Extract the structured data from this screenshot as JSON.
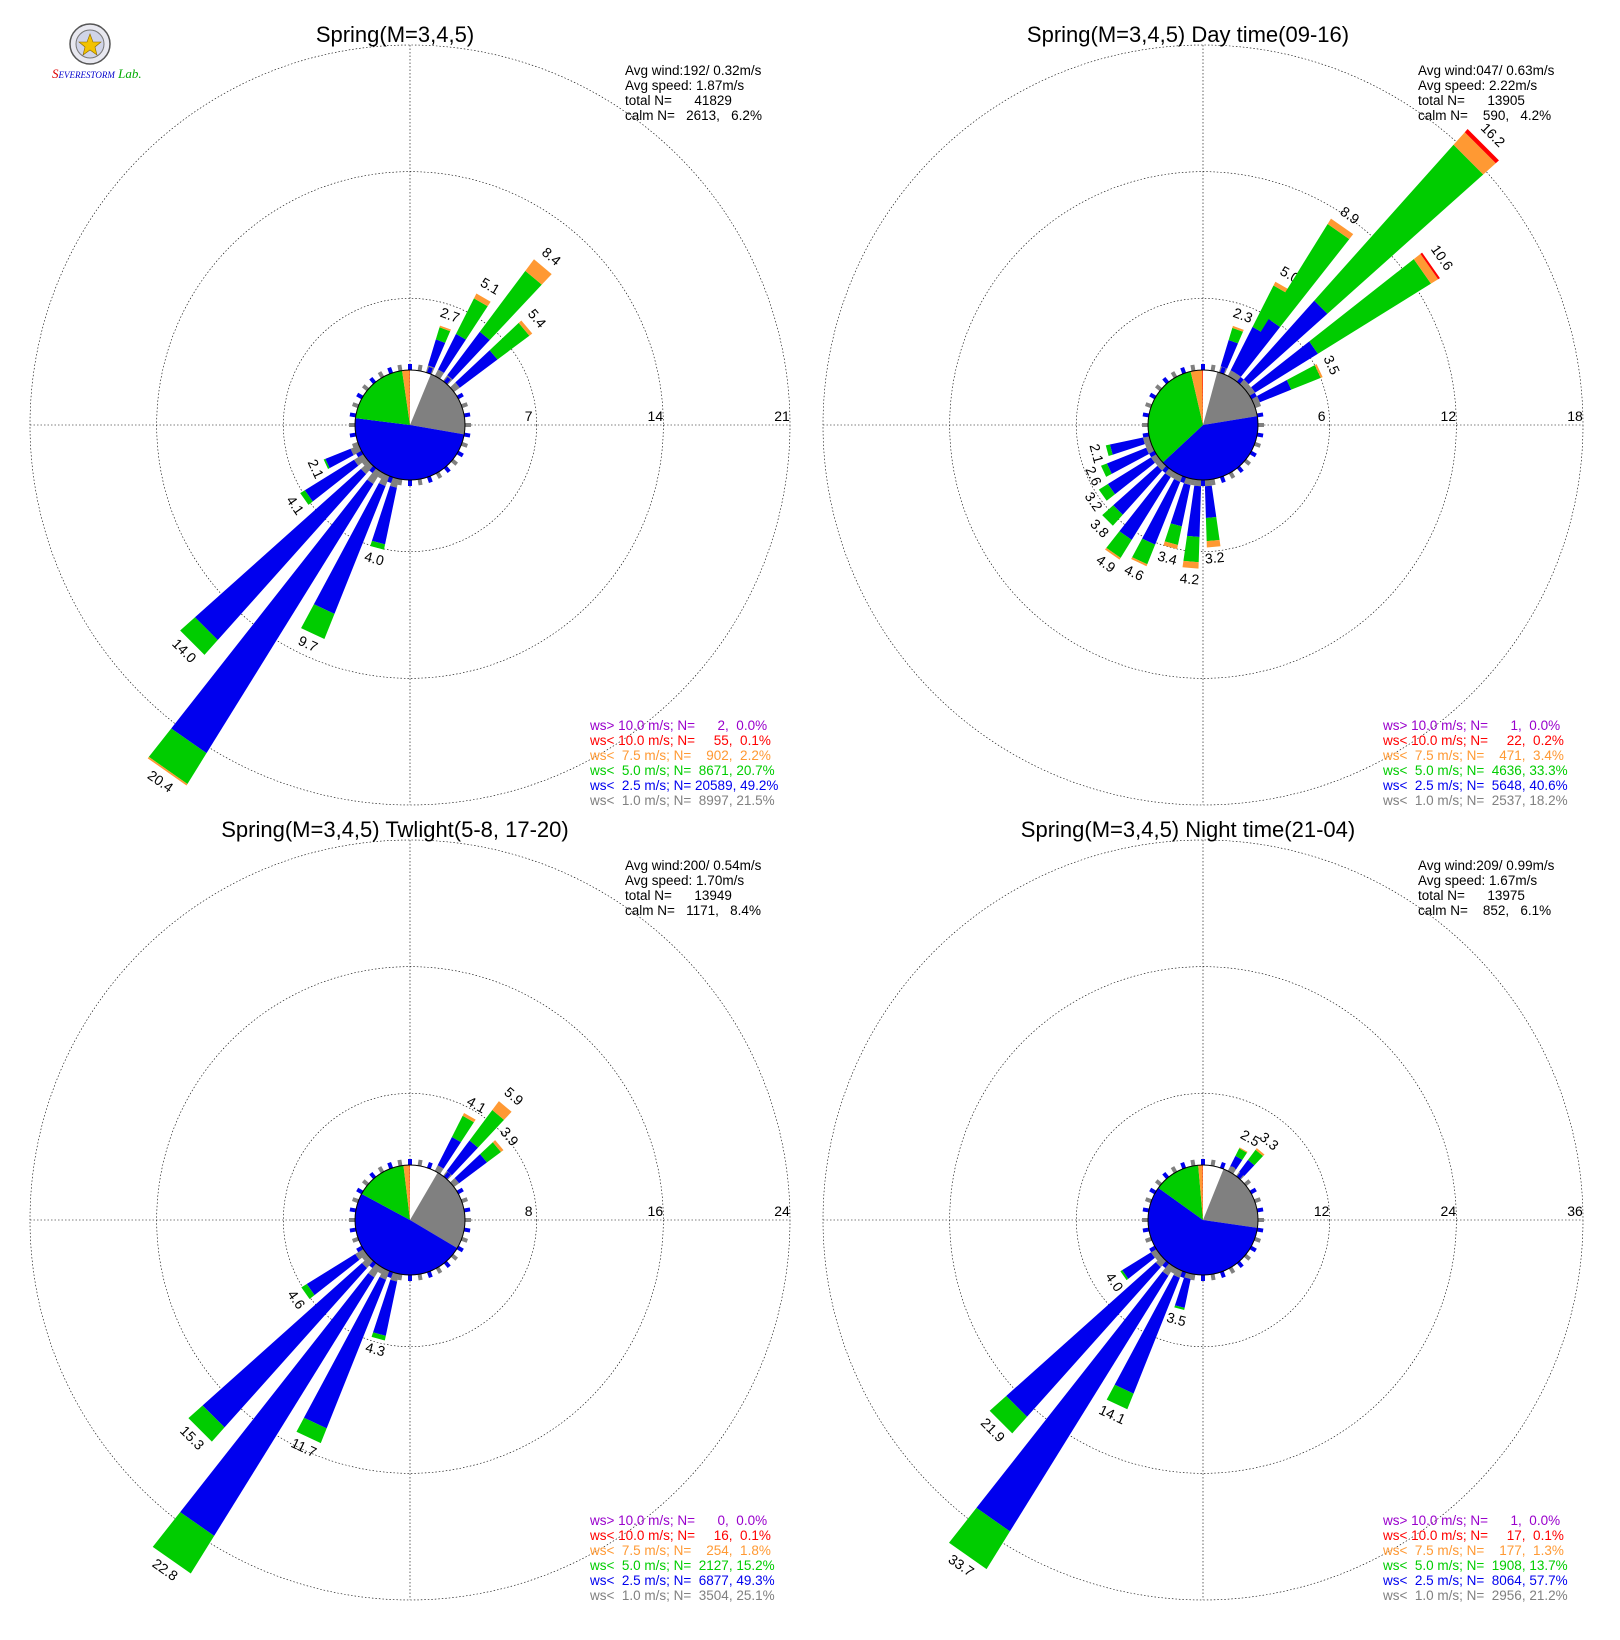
{
  "logo_text": "Severe Storm Lab.",
  "colors": {
    "gt10": "#9900cc",
    "lt10": "#ff0000",
    "lt75": "#ff9933",
    "lt5": "#00cc00",
    "lt25": "#0000ee",
    "lt1": "#808080",
    "calm": "#ffffff",
    "grid": "#000000"
  },
  "chart_data": [
    {
      "type": "windrose",
      "title": "Spring(M=3,4,5)",
      "stats": [
        "Avg wind:192/ 0.32m/s",
        "Avg speed: 1.87m/s",
        "total N=      41829",
        "calm N=   2613,   6.2%"
      ],
      "ring_labels": [
        "7",
        "14",
        "21"
      ],
      "rmax": 21,
      "pie": [
        6.2,
        21.5,
        49.2,
        20.7,
        2.2,
        0.1
      ],
      "petals": [
        {
          "dir_deg": 30,
          "total": 5.1,
          "label": "5.1",
          "segs": [
            0.4,
            2.2,
            2.2,
            0.3,
            0
          ]
        },
        {
          "dir_deg": 40,
          "total": 8.4,
          "label": "8.4",
          "segs": [
            0.4,
            3.0,
            4.2,
            0.8,
            0
          ]
        },
        {
          "dir_deg": 50,
          "total": 5.4,
          "label": "5.4",
          "segs": [
            0.4,
            2.6,
            2.2,
            0.2,
            0
          ]
        },
        {
          "dir_deg": 20,
          "total": 2.7,
          "label": "2.7",
          "segs": [
            0.4,
            1.5,
            0.7,
            0.1,
            0
          ]
        },
        {
          "dir_deg": 215,
          "total": 20.4,
          "label": "20.4",
          "segs": [
            0.8,
            17.5,
            2.0,
            0.1,
            0
          ]
        },
        {
          "dir_deg": 225,
          "total": 14.0,
          "label": "14.0",
          "segs": [
            0.6,
            12.3,
            1.1,
            0,
            0
          ]
        },
        {
          "dir_deg": 205,
          "total": 9.7,
          "label": "9.7",
          "segs": [
            0.6,
            7.6,
            1.5,
            0,
            0
          ]
        },
        {
          "dir_deg": 195,
          "total": 4.0,
          "label": "4.0",
          "segs": [
            0.5,
            3.2,
            0.3,
            0,
            0
          ]
        },
        {
          "dir_deg": 235,
          "total": 4.1,
          "label": "4.1",
          "segs": [
            0.6,
            3.2,
            0.3,
            0,
            0
          ]
        },
        {
          "dir_deg": 245,
          "total": 2.1,
          "label": "2.1",
          "segs": [
            0.5,
            1.5,
            0.1,
            0,
            0
          ]
        }
      ],
      "legend": [
        {
          "text": "ws> 10.0 m/s; N=      2,  0.0%",
          "key": "gt10"
        },
        {
          "text": "ws< 10.0 m/s; N=     55,  0.1%",
          "key": "lt10"
        },
        {
          "text": "ws<  7.5 m/s; N=    902,  2.2%",
          "key": "lt75"
        },
        {
          "text": "ws<  5.0 m/s; N=  8671, 20.7%",
          "key": "lt5"
        },
        {
          "text": "ws<  2.5 m/s; N= 20589, 49.2%",
          "key": "lt25"
        },
        {
          "text": "ws<  1.0 m/s; N=  8997, 21.5%",
          "key": "lt1"
        }
      ]
    },
    {
      "type": "windrose",
      "title": "Spring(M=3,4,5) Day time(09-16)",
      "stats": [
        "Avg wind:047/ 0.63m/s",
        "Avg speed: 2.22m/s",
        "total N=      13905",
        "calm N=    590,   4.2%"
      ],
      "ring_labels": [
        "6",
        "12",
        "18"
      ],
      "rmax": 18,
      "pie": [
        4.2,
        18.2,
        40.6,
        33.3,
        3.4,
        0.2
      ],
      "petals": [
        {
          "dir_deg": 20,
          "total": 2.3,
          "label": "2.3",
          "segs": [
            0.3,
            1.3,
            0.6,
            0.1,
            0
          ]
        },
        {
          "dir_deg": 30,
          "total": 5.0,
          "label": "5.0",
          "segs": [
            0.3,
            2.3,
            2.2,
            0.2,
            0
          ]
        },
        {
          "dir_deg": 35,
          "total": 8.9,
          "label": "8.9",
          "segs": [
            0.3,
            3.0,
            5.3,
            0.3,
            0
          ]
        },
        {
          "dir_deg": 45,
          "total": 16.2,
          "label": "16.2",
          "segs": [
            0.3,
            5.0,
            9.9,
            0.8,
            0.2
          ]
        },
        {
          "dir_deg": 55,
          "total": 10.6,
          "label": "10.6",
          "segs": [
            0.3,
            3.5,
            6.3,
            0.4,
            0.1
          ]
        },
        {
          "dir_deg": 65,
          "total": 3.5,
          "label": "3.5",
          "segs": [
            0.3,
            1.6,
            1.5,
            0.1,
            0
          ]
        },
        {
          "dir_deg": 175,
          "total": 3.2,
          "label": "3.2",
          "segs": [
            0.3,
            1.5,
            1.1,
            0.3,
            0
          ]
        },
        {
          "dir_deg": 185,
          "total": 4.2,
          "label": "4.2",
          "segs": [
            0.3,
            2.4,
            1.2,
            0.3,
            0
          ]
        },
        {
          "dir_deg": 195,
          "total": 3.4,
          "label": "3.4",
          "segs": [
            0.3,
            2.0,
            0.9,
            0.2,
            0
          ]
        },
        {
          "dir_deg": 205,
          "total": 4.6,
          "label": "4.6",
          "segs": [
            0.3,
            3.2,
            1.0,
            0.1,
            0
          ]
        },
        {
          "dir_deg": 215,
          "total": 4.9,
          "label": "4.9",
          "segs": [
            0.3,
            3.5,
            1.0,
            0.1,
            0
          ]
        },
        {
          "dir_deg": 225,
          "total": 3.8,
          "label": "3.8",
          "segs": [
            0.3,
            2.8,
            0.7,
            0,
            0
          ]
        },
        {
          "dir_deg": 235,
          "total": 3.2,
          "label": "3.2",
          "segs": [
            0.3,
            2.4,
            0.5,
            0,
            0
          ]
        },
        {
          "dir_deg": 245,
          "total": 2.6,
          "label": "2.6",
          "segs": [
            0.3,
            2.0,
            0.3,
            0,
            0
          ]
        },
        {
          "dir_deg": 255,
          "total": 2.1,
          "label": "2.1",
          "segs": [
            0.3,
            1.6,
            0.2,
            0,
            0
          ]
        }
      ],
      "legend": [
        {
          "text": "ws> 10.0 m/s; N=      1,  0.0%",
          "key": "gt10"
        },
        {
          "text": "ws< 10.0 m/s; N=     22,  0.2%",
          "key": "lt10"
        },
        {
          "text": "ws<  7.5 m/s; N=    471,  3.4%",
          "key": "lt75"
        },
        {
          "text": "ws<  5.0 m/s; N=  4636, 33.3%",
          "key": "lt5"
        },
        {
          "text": "ws<  2.5 m/s; N=  5648, 40.6%",
          "key": "lt25"
        },
        {
          "text": "ws<  1.0 m/s; N=  2537, 18.2%",
          "key": "lt1"
        }
      ]
    },
    {
      "type": "windrose",
      "title": "Spring(M=3,4,5) Twlight(5-8, 17-20)",
      "stats": [
        "Avg wind:200/ 0.54m/s",
        "Avg speed: 1.70m/s",
        "total N=      13949",
        "calm N=   1171,   8.4%"
      ],
      "ring_labels": [
        "8",
        "16",
        "24"
      ],
      "rmax": 24,
      "pie": [
        8.4,
        25.1,
        49.3,
        15.2,
        1.8,
        0.1
      ],
      "petals": [
        {
          "dir_deg": 30,
          "total": 4.1,
          "label": "4.1",
          "segs": [
            0.4,
            2.0,
            1.5,
            0.2,
            0
          ]
        },
        {
          "dir_deg": 40,
          "total": 5.9,
          "label": "5.9",
          "segs": [
            0.4,
            2.4,
            2.4,
            0.7,
            0
          ]
        },
        {
          "dir_deg": 50,
          "total": 3.9,
          "label": "3.9",
          "segs": [
            0.4,
            2.2,
            1.1,
            0.2,
            0
          ]
        },
        {
          "dir_deg": 215,
          "total": 22.8,
          "label": "22.8",
          "segs": [
            0.8,
            19.2,
            2.8,
            0,
            0
          ]
        },
        {
          "dir_deg": 225,
          "total": 15.3,
          "label": "15.3",
          "segs": [
            0.6,
            13.5,
            1.2,
            0,
            0
          ]
        },
        {
          "dir_deg": 205,
          "total": 11.7,
          "label": "11.7",
          "segs": [
            0.6,
            10.1,
            1.0,
            0,
            0
          ]
        },
        {
          "dir_deg": 195,
          "total": 4.3,
          "label": "4.3",
          "segs": [
            0.5,
            3.5,
            0.3,
            0,
            0
          ]
        },
        {
          "dir_deg": 235,
          "total": 4.6,
          "label": "4.6",
          "segs": [
            0.6,
            3.6,
            0.4,
            0,
            0
          ]
        }
      ],
      "legend": [
        {
          "text": "ws> 10.0 m/s; N=      0,  0.0%",
          "key": "gt10"
        },
        {
          "text": "ws< 10.0 m/s; N=     16,  0.1%",
          "key": "lt10"
        },
        {
          "text": "ws<  7.5 m/s; N=    254,  1.8%",
          "key": "lt75"
        },
        {
          "text": "ws<  5.0 m/s; N=  2127, 15.2%",
          "key": "lt5"
        },
        {
          "text": "ws<  2.5 m/s; N=  6877, 49.3%",
          "key": "lt25"
        },
        {
          "text": "ws<  1.0 m/s; N=  3504, 25.1%",
          "key": "lt1"
        }
      ]
    },
    {
      "type": "windrose",
      "title": "Spring(M=3,4,5) Night time(21-04)",
      "stats": [
        "Avg wind:209/ 0.99m/s",
        "Avg speed: 1.67m/s",
        "total N=      13975",
        "calm N=    852,   6.1%"
      ],
      "ring_labels": [
        "12",
        "24",
        "36"
      ],
      "rmax": 36,
      "pie": [
        6.1,
        21.2,
        57.7,
        13.7,
        1.3,
        0.1
      ],
      "petals": [
        {
          "dir_deg": 30,
          "total": 2.5,
          "label": "2.5",
          "segs": [
            0.5,
            1.1,
            0.8,
            0.1,
            0
          ]
        },
        {
          "dir_deg": 40,
          "total": 3.3,
          "label": "3.3",
          "segs": [
            0.5,
            1.4,
            1.2,
            0.2,
            0
          ]
        },
        {
          "dir_deg": 215,
          "total": 33.7,
          "label": "33.7",
          "segs": [
            1.0,
            28.5,
            4.2,
            0,
            0
          ]
        },
        {
          "dir_deg": 225,
          "total": 21.9,
          "label": "21.9",
          "segs": [
            0.8,
            19.0,
            2.1,
            0,
            0
          ]
        },
        {
          "dir_deg": 205,
          "total": 14.1,
          "label": "14.1",
          "segs": [
            0.7,
            11.8,
            1.6,
            0,
            0
          ]
        },
        {
          "dir_deg": 195,
          "total": 3.5,
          "label": "3.5",
          "segs": [
            0.5,
            2.8,
            0.2,
            0,
            0
          ]
        },
        {
          "dir_deg": 235,
          "total": 4.0,
          "label": "4.0",
          "segs": [
            0.6,
            3.2,
            0.2,
            0,
            0
          ]
        }
      ],
      "legend": [
        {
          "text": "ws> 10.0 m/s; N=      1,  0.0%",
          "key": "gt10"
        },
        {
          "text": "ws< 10.0 m/s; N=     17,  0.1%",
          "key": "lt10"
        },
        {
          "text": "ws<  7.5 m/s; N=    177,  1.3%",
          "key": "lt75"
        },
        {
          "text": "ws<  5.0 m/s; N=  1908, 13.7%",
          "key": "lt5"
        },
        {
          "text": "ws<  2.5 m/s; N=  8064, 57.7%",
          "key": "lt25"
        },
        {
          "text": "ws<  1.0 m/s; N=  2956, 21.2%",
          "key": "lt1"
        }
      ]
    }
  ]
}
